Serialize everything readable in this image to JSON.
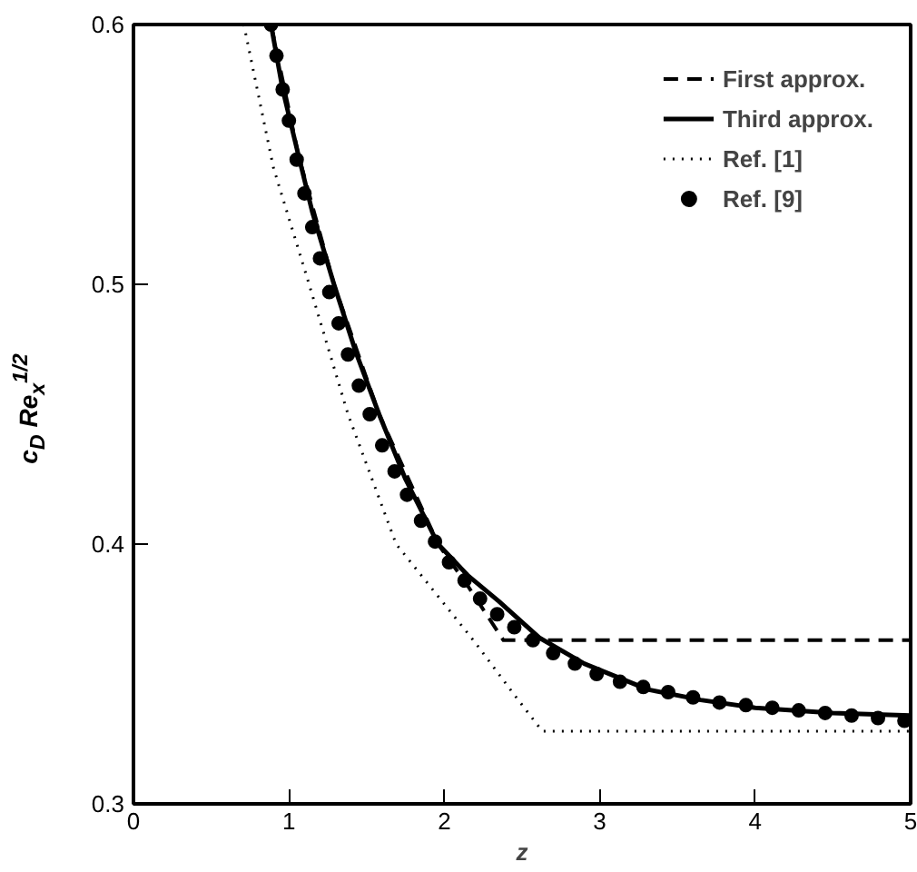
{
  "chart_data": {
    "type": "line",
    "xlabel": "z",
    "ylabel": "c$_{D}$ Re$_{x}$$^{1/2}$",
    "xlim": [
      0,
      5
    ],
    "ylim": [
      0.3,
      0.6
    ],
    "xticks": [
      0,
      1,
      2,
      3,
      4,
      5
    ],
    "yticks": [
      0.3,
      0.4,
      0.5,
      0.6
    ],
    "legend": "top right",
    "series": [
      {
        "name": "First approx.",
        "color": "#000000",
        "line_style": "dashed",
        "x": [
          0.885,
          1.06,
          1.29,
          1.58,
          1.96,
          2.15,
          2.38,
          5.0
        ],
        "values": [
          0.6,
          0.55,
          0.5,
          0.45,
          0.4,
          0.384,
          0.363,
          0.363
        ]
      },
      {
        "name": "Third approx.",
        "color": "#000000",
        "line_style": "solid",
        "x": [
          0.885,
          0.96,
          1.06,
          1.15,
          1.29,
          1.43,
          1.58,
          1.75,
          1.96,
          2.15,
          2.35,
          2.61,
          2.9,
          3.31,
          3.65,
          4.0,
          4.5,
          5.0
        ],
        "values": [
          0.6,
          0.575,
          0.55,
          0.528,
          0.5,
          0.474,
          0.45,
          0.425,
          0.4,
          0.388,
          0.378,
          0.364,
          0.354,
          0.344,
          0.34,
          0.337,
          0.335,
          0.334
        ]
      },
      {
        "name": "Ref. [1]",
        "color": "#000000",
        "line_style": "dotted",
        "x": [
          0.71,
          0.9,
          1.13,
          1.38,
          1.69,
          2.2,
          2.45,
          2.63,
          5.0
        ],
        "values": [
          0.6,
          0.545,
          0.5,
          0.45,
          0.4,
          0.362,
          0.342,
          0.328,
          0.328
        ]
      },
      {
        "name": "Ref. [9]",
        "color": "#000000",
        "type": "scatter",
        "marker": "circle",
        "x": [
          0.885,
          0.92,
          0.96,
          1.0,
          1.05,
          1.1,
          1.15,
          1.2,
          1.26,
          1.32,
          1.38,
          1.45,
          1.52,
          1.6,
          1.68,
          1.76,
          1.85,
          1.94,
          2.03,
          2.13,
          2.23,
          2.34,
          2.45,
          2.57,
          2.7,
          2.84,
          2.98,
          3.13,
          3.28,
          3.44,
          3.6,
          3.77,
          3.94,
          4.11,
          4.28,
          4.45,
          4.62,
          4.79,
          4.96
        ],
        "values": [
          0.6,
          0.588,
          0.575,
          0.563,
          0.548,
          0.535,
          0.522,
          0.51,
          0.497,
          0.485,
          0.473,
          0.461,
          0.45,
          0.438,
          0.428,
          0.419,
          0.409,
          0.401,
          0.393,
          0.386,
          0.379,
          0.373,
          0.368,
          0.363,
          0.358,
          0.354,
          0.35,
          0.347,
          0.345,
          0.343,
          0.341,
          0.339,
          0.338,
          0.337,
          0.336,
          0.335,
          0.334,
          0.333,
          0.332
        ]
      }
    ]
  }
}
